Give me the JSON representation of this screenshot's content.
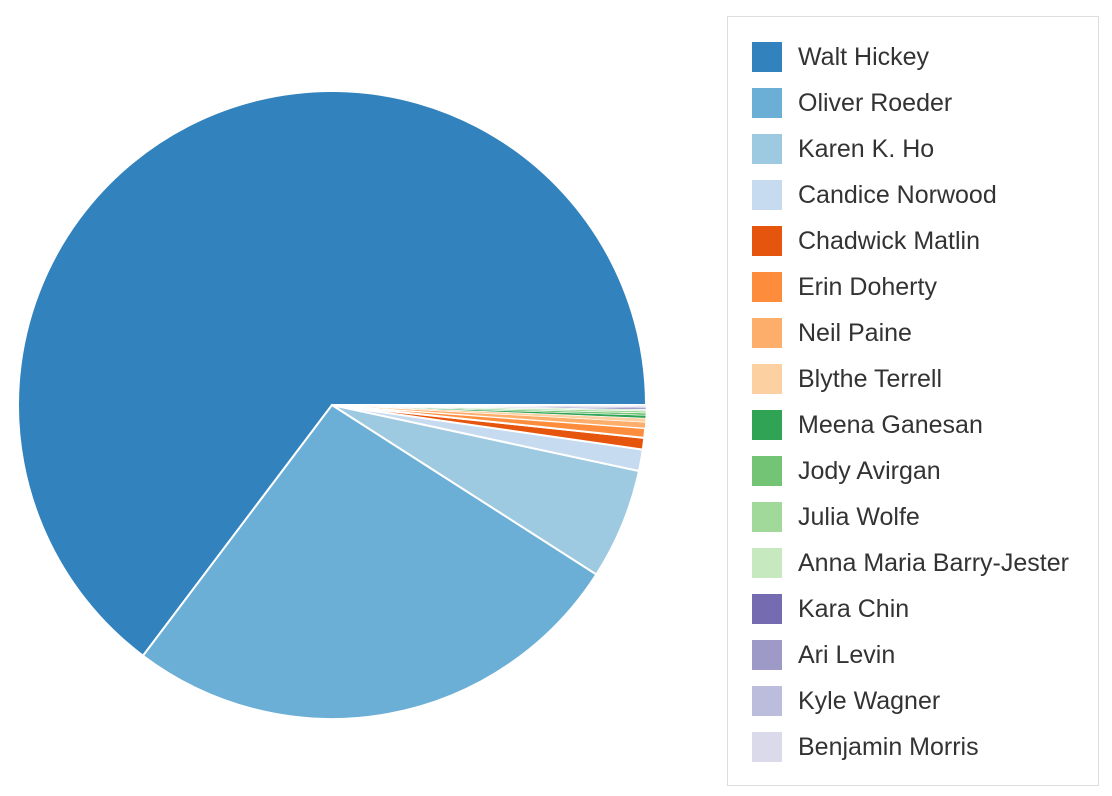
{
  "chart_data": {
    "type": "pie",
    "slices": [
      {
        "label": "Walt Hickey",
        "value": 64.7,
        "color": "#3182bd"
      },
      {
        "label": "Oliver Roeder",
        "value": 26.2,
        "color": "#6baed6"
      },
      {
        "label": "Karen K. Ho",
        "value": 5.7,
        "color": "#9ecae1"
      },
      {
        "label": "Candice Norwood",
        "value": 1.1,
        "color": "#c6dbef"
      },
      {
        "label": "Chadwick Matlin",
        "value": 0.6,
        "color": "#e6550d"
      },
      {
        "label": "Erin Doherty",
        "value": 0.5,
        "color": "#fd8d3c"
      },
      {
        "label": "Neil Paine",
        "value": 0.3,
        "color": "#fdae6b"
      },
      {
        "label": "Blythe Terrell",
        "value": 0.2,
        "color": "#fdd0a2"
      },
      {
        "label": "Meena Ganesan",
        "value": 0.15,
        "color": "#31a354"
      },
      {
        "label": "Jody Avirgan",
        "value": 0.12,
        "color": "#74c476"
      },
      {
        "label": "Julia Wolfe",
        "value": 0.1,
        "color": "#a1d99b"
      },
      {
        "label": "Anna Maria Barry-Jester",
        "value": 0.08,
        "color": "#c7e9c0"
      },
      {
        "label": "Kara Chin",
        "value": 0.07,
        "color": "#756bb1"
      },
      {
        "label": "Ari Levin",
        "value": 0.06,
        "color": "#9e9ac8"
      },
      {
        "label": "Kyle Wagner",
        "value": 0.05,
        "color": "#bcbddc"
      },
      {
        "label": "Benjamin Morris",
        "value": 0.04,
        "color": "#dadaeb"
      }
    ],
    "legend_position": "right"
  }
}
